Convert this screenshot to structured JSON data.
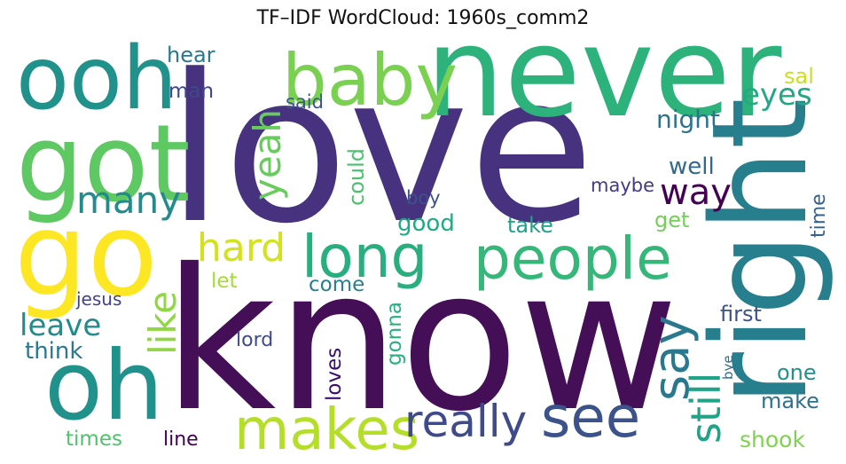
{
  "chart_data": {
    "type": "wordcloud",
    "title": "TF–IDF WordCloud: 1960s_comm2",
    "words": [
      {
        "text": "love",
        "color": "#46327e"
      },
      {
        "text": "know",
        "color": "#440f57"
      },
      {
        "text": "never",
        "color": "#2eb27c"
      },
      {
        "text": "right",
        "color": "#277f8e"
      },
      {
        "text": "got",
        "color": "#5ec962"
      },
      {
        "text": "go",
        "color": "#fde725"
      },
      {
        "text": "ooh",
        "color": "#21918c"
      },
      {
        "text": "oh",
        "color": "#21918c"
      },
      {
        "text": "baby",
        "color": "#7ad151"
      },
      {
        "text": "long",
        "color": "#29af7f"
      },
      {
        "text": "people",
        "color": "#35b779"
      },
      {
        "text": "makes",
        "color": "#b5de2b"
      },
      {
        "text": "see",
        "color": "#3b528b"
      },
      {
        "text": "say",
        "color": "#2a788e"
      },
      {
        "text": "really",
        "color": "#3e4a89"
      },
      {
        "text": "still",
        "color": "#20a386"
      },
      {
        "text": "many",
        "color": "#238a8d"
      },
      {
        "text": "way",
        "color": "#440154"
      },
      {
        "text": "eyes",
        "color": "#22a884"
      },
      {
        "text": "yeah",
        "color": "#67cc5c"
      },
      {
        "text": "hard",
        "color": "#d2e21b"
      },
      {
        "text": "like",
        "color": "#90d743"
      },
      {
        "text": "leave",
        "color": "#228c8d"
      },
      {
        "text": "night",
        "color": "#2c728e"
      },
      {
        "text": "well",
        "color": "#31688e"
      },
      {
        "text": "could",
        "color": "#4ac16d"
      },
      {
        "text": "good",
        "color": "#22a884"
      },
      {
        "text": "take",
        "color": "#1fa088"
      },
      {
        "text": "get",
        "color": "#73d056"
      },
      {
        "text": "time",
        "color": "#33628d"
      },
      {
        "text": "maybe",
        "color": "#443983"
      },
      {
        "text": "boy",
        "color": "#3b528b"
      },
      {
        "text": "hear",
        "color": "#2a788e"
      },
      {
        "text": "man",
        "color": "#3f4788"
      },
      {
        "text": "said",
        "color": "#39568c"
      },
      {
        "text": "sal",
        "color": "#c8e020"
      },
      {
        "text": "let",
        "color": "#a5db36"
      },
      {
        "text": "come",
        "color": "#287d8e"
      },
      {
        "text": "gonna",
        "color": "#29af7f"
      },
      {
        "text": "jesus",
        "color": "#404387"
      },
      {
        "text": "think",
        "color": "#2a788e"
      },
      {
        "text": "lord",
        "color": "#3e4a89"
      },
      {
        "text": "loves",
        "color": "#3b0f70"
      },
      {
        "text": "first",
        "color": "#3b528b"
      },
      {
        "text": "one",
        "color": "#21918c"
      },
      {
        "text": "make",
        "color": "#2c728e"
      },
      {
        "text": "bye",
        "color": "#2f6c8e"
      },
      {
        "text": "times",
        "color": "#4ec36b"
      },
      {
        "text": "line",
        "color": "#440154"
      },
      {
        "text": "shook",
        "color": "#7fd34e"
      }
    ]
  }
}
